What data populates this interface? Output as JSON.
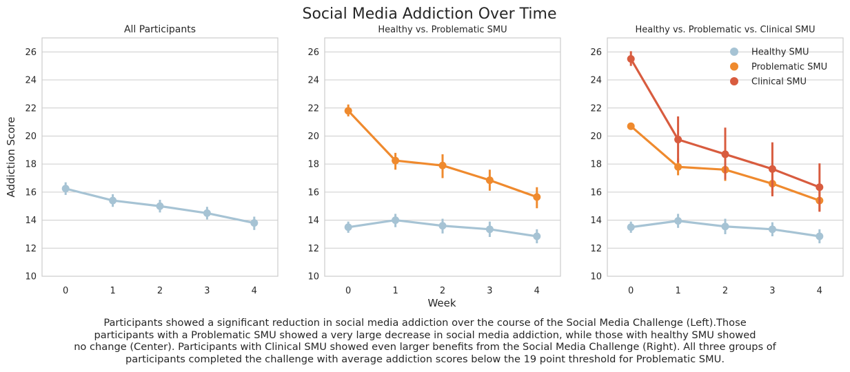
{
  "figure": {
    "title": "Social Media Addiction Over Time",
    "xlabel": "Week",
    "ylabel": "Addiction Score"
  },
  "colors": {
    "healthy": "#a6c3d4",
    "problematic": "#ef8a2e",
    "clinical": "#d85c3f",
    "grid": "#cccccc",
    "axes": "#cccccc"
  },
  "chart_data": [
    {
      "type": "line",
      "title": "All Participants",
      "x": [
        0,
        1,
        2,
        3,
        4
      ],
      "xlim": [
        -0.5,
        4.5
      ],
      "ylim": [
        10,
        27
      ],
      "yticks": [
        10,
        12,
        14,
        16,
        18,
        20,
        22,
        24,
        26
      ],
      "grid": true,
      "legend": "none",
      "series": [
        {
          "key": "healthy",
          "values": [
            16.25,
            15.4,
            15.0,
            14.5,
            13.8
          ],
          "err_low": [
            15.8,
            14.95,
            14.55,
            14.05,
            13.3
          ],
          "err_high": [
            16.7,
            15.85,
            15.45,
            14.95,
            14.25
          ]
        }
      ]
    },
    {
      "type": "line",
      "title": "Healthy vs. Problematic SMU",
      "x": [
        0,
        1,
        2,
        3,
        4
      ],
      "xlim": [
        -0.5,
        4.5
      ],
      "ylim": [
        10,
        27
      ],
      "yticks": [
        10,
        12,
        14,
        16,
        18,
        20,
        22,
        24,
        26
      ],
      "grid": true,
      "legend": "none",
      "series": [
        {
          "key": "healthy",
          "values": [
            13.5,
            14.0,
            13.6,
            13.35,
            12.85
          ],
          "err_low": [
            13.1,
            13.5,
            13.05,
            12.8,
            12.35
          ],
          "err_high": [
            13.9,
            14.45,
            14.1,
            13.9,
            13.35
          ]
        },
        {
          "key": "problematic",
          "values": [
            21.8,
            18.25,
            17.9,
            16.85,
            15.65
          ],
          "err_low": [
            21.4,
            17.6,
            17.0,
            16.1,
            14.85
          ],
          "err_high": [
            22.25,
            18.8,
            18.7,
            17.6,
            16.35
          ]
        }
      ]
    },
    {
      "type": "line",
      "title": "Healthy vs. Problematic vs. Clinical SMU",
      "x": [
        0,
        1,
        2,
        3,
        4
      ],
      "xlim": [
        -0.5,
        4.5
      ],
      "ylim": [
        10,
        27
      ],
      "yticks": [
        10,
        12,
        14,
        16,
        18,
        20,
        22,
        24,
        26
      ],
      "grid": true,
      "legend": "top-right",
      "series": [
        {
          "key": "healthy",
          "name": "Healthy SMU",
          "values": [
            13.5,
            13.95,
            13.55,
            13.35,
            12.85
          ],
          "err_low": [
            13.1,
            13.45,
            13.0,
            12.85,
            12.35
          ],
          "err_high": [
            13.9,
            14.45,
            14.1,
            13.85,
            13.35
          ]
        },
        {
          "key": "problematic",
          "name": "Problematic SMU",
          "values": [
            20.7,
            17.8,
            17.6,
            16.6,
            15.4
          ],
          "err_low": [
            20.45,
            17.2,
            16.8,
            15.8,
            14.65
          ],
          "err_high": [
            20.95,
            18.4,
            18.35,
            17.4,
            16.1
          ]
        },
        {
          "key": "clinical",
          "name": "Clinical SMU",
          "values": [
            25.5,
            19.75,
            18.7,
            17.65,
            16.35
          ],
          "err_low": [
            25.0,
            18.1,
            16.9,
            15.7,
            14.6
          ],
          "err_high": [
            26.05,
            21.4,
            20.6,
            19.55,
            18.05
          ]
        }
      ]
    }
  ],
  "caption": {
    "line1": "Participants showed a significant reduction in social media addiction over the course of the Social Media Challenge (Left).Those",
    "line2": "participants with a Problematic SMU showed a very large decrease in social media addiction, while those with healthy SMU showed",
    "line3": "no change (Center). Participants with Clinical SMU showed even larger benefits from the Social Media Challenge (Right). All three groups of",
    "line4": "participants completed the challenge with average addiction scores below the 19 point threshold for Problematic SMU."
  }
}
